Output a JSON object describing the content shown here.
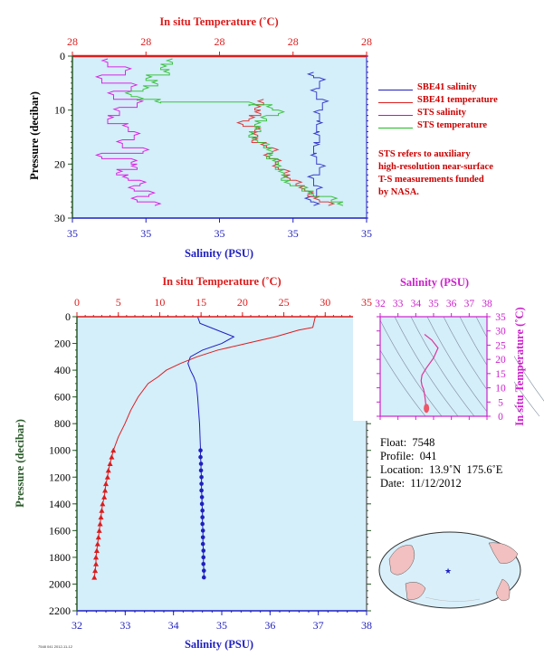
{
  "chart_data": [
    {
      "id": "top",
      "type": "line",
      "title": "In situ Temperature (˚C)",
      "xlabel": "Salinity (PSU)",
      "ylabel": "Pressure (decibar)",
      "ylim": [
        30,
        0
      ],
      "yticks": [
        "0",
        "10",
        "20",
        "30"
      ],
      "xticks_bottom": [
        "35",
        "35",
        "35",
        "35",
        "35"
      ],
      "xticks_top": [
        "28",
        "28",
        "28",
        "28",
        "28"
      ],
      "series": [
        {
          "name": "SBE41 salinity",
          "color": "#1f1fbf",
          "pressure": [
            3,
            4,
            6,
            8,
            10,
            12,
            14,
            16,
            18,
            20,
            22,
            24,
            26,
            27
          ],
          "value": [
            0.82,
            0.84,
            0.83,
            0.85,
            0.84,
            0.83,
            0.84,
            0.82,
            0.83,
            0.84,
            0.82,
            0.83,
            0.81,
            0.82
          ]
        },
        {
          "name": "SBE41 temperature",
          "color": "#dd1c1c",
          "pressure": [
            8,
            9,
            10,
            11,
            12,
            13,
            14,
            15,
            16,
            17,
            18,
            19,
            20,
            21,
            22,
            23,
            24,
            25,
            26,
            27
          ],
          "value": [
            0.65,
            0.62,
            0.64,
            0.6,
            0.58,
            0.62,
            0.63,
            0.61,
            0.66,
            0.68,
            0.67,
            0.69,
            0.7,
            0.72,
            0.74,
            0.76,
            0.79,
            0.8,
            0.84,
            0.87
          ]
        },
        {
          "name": "STS salinity",
          "color": "#dd00dd",
          "pressure": [
            0.5,
            2,
            3.5,
            5,
            6.5,
            8,
            9.5,
            11,
            12.5,
            14,
            15.5,
            17,
            18,
            19,
            20,
            21,
            22,
            23,
            24,
            25,
            26,
            27
          ],
          "value": [
            0.12,
            0.18,
            0.1,
            0.2,
            0.14,
            0.22,
            0.16,
            0.12,
            0.19,
            0.21,
            0.17,
            0.24,
            0.1,
            0.2,
            0.22,
            0.15,
            0.19,
            0.23,
            0.21,
            0.26,
            0.22,
            0.28
          ]
        },
        {
          "name": "STS temperature",
          "color": "#22bb22",
          "pressure": [
            0.5,
            1.5,
            2.5,
            3.5,
            4.5,
            5.5,
            6.5,
            7.5,
            8,
            8.5,
            9,
            10,
            11,
            12,
            13,
            14,
            15,
            16,
            17,
            18,
            19,
            20,
            21,
            22,
            23,
            24,
            25,
            26,
            27
          ],
          "value": [
            0.34,
            0.3,
            0.33,
            0.25,
            0.29,
            0.24,
            0.2,
            0.22,
            0.3,
            0.6,
            0.68,
            0.7,
            0.66,
            0.62,
            0.64,
            0.6,
            0.63,
            0.65,
            0.68,
            0.66,
            0.7,
            0.69,
            0.72,
            0.71,
            0.74,
            0.78,
            0.82,
            0.88,
            0.92
          ]
        }
      ]
    },
    {
      "id": "bottom",
      "type": "line",
      "title": "In situ Temperature (˚C)",
      "xlabel": "Salinity (PSU)",
      "ylabel": "Pressure (decibar)",
      "xlim": [
        32,
        38
      ],
      "xticks": [
        "32",
        "33",
        "34",
        "35",
        "36",
        "37",
        "38"
      ],
      "temp_lim": [
        0,
        35
      ],
      "temp_ticks": [
        "0",
        "5",
        "10",
        "15",
        "20",
        "25",
        "30",
        "35"
      ],
      "ylim": [
        2200,
        0
      ],
      "yticks": [
        "0",
        "200",
        "400",
        "600",
        "800",
        "1000",
        "1200",
        "1400",
        "1600",
        "1800",
        "2000",
        "2200"
      ],
      "series": [
        {
          "name": "Salinity",
          "color": "#1f1fbf",
          "pressure": [
            0,
            50,
            100,
            150,
            200,
            250,
            300,
            350,
            400,
            450,
            500,
            600,
            700,
            800,
            900,
            1000,
            1050,
            1100,
            1150,
            1200,
            1250,
            1300,
            1350,
            1400,
            1450,
            1500,
            1550,
            1600,
            1650,
            1700,
            1750,
            1800,
            1850,
            1900,
            1950
          ],
          "value": [
            34.5,
            34.55,
            34.9,
            35.25,
            35.0,
            34.6,
            34.35,
            34.3,
            34.35,
            34.42,
            34.47,
            34.5,
            34.52,
            34.54,
            34.55,
            34.56,
            34.56,
            34.57,
            34.57,
            34.58,
            34.58,
            34.58,
            34.59,
            34.59,
            34.6,
            34.6,
            34.6,
            34.61,
            34.61,
            34.61,
            34.62,
            34.62,
            34.62,
            34.63,
            34.63
          ],
          "markers_from": 1000
        },
        {
          "name": "Temperature",
          "color": "#dd1c1c",
          "pressure": [
            0,
            80,
            100,
            150,
            200,
            250,
            300,
            350,
            400,
            450,
            500,
            600,
            700,
            800,
            900,
            1000,
            1050,
            1100,
            1150,
            1200,
            1250,
            1300,
            1350,
            1400,
            1450,
            1500,
            1550,
            1600,
            1650,
            1700,
            1750,
            1800,
            1850,
            1900,
            1950
          ],
          "value": [
            28.8,
            28.5,
            26.8,
            24.0,
            20.5,
            17.0,
            14.5,
            12.5,
            10.8,
            9.8,
            8.6,
            7.4,
            6.5,
            5.8,
            5.0,
            4.4,
            4.2,
            4.0,
            3.8,
            3.7,
            3.5,
            3.4,
            3.3,
            3.1,
            3.0,
            2.9,
            2.8,
            2.7,
            2.6,
            2.5,
            2.4,
            2.3,
            2.3,
            2.2,
            2.1
          ],
          "markers_from": 1000
        }
      ]
    },
    {
      "id": "ts",
      "type": "line",
      "title": "Salinity (PSU)",
      "ylabel": "In situ Temperature (˚C)",
      "xlim": [
        32,
        38
      ],
      "xticks": [
        "32",
        "33",
        "34",
        "35",
        "36",
        "37",
        "38"
      ],
      "ylim": [
        0,
        35
      ],
      "yticks": [
        "0",
        "5",
        "10",
        "15",
        "20",
        "25",
        "30",
        "35"
      ],
      "series": [
        {
          "name": "T-S",
          "color": "#dd3399",
          "salinity": [
            34.63,
            34.6,
            34.57,
            34.55,
            34.52,
            34.5,
            34.47,
            34.42,
            34.35,
            34.3,
            34.35,
            34.6,
            35.0,
            35.25,
            34.9,
            34.55,
            34.5
          ],
          "temperature": [
            2.1,
            2.9,
            3.7,
            5.0,
            6.5,
            7.4,
            8.6,
            9.8,
            10.8,
            12.5,
            14.5,
            17.0,
            20.5,
            24.0,
            26.8,
            28.5,
            28.8
          ]
        }
      ]
    }
  ],
  "legend": [
    {
      "label": "SBE41 salinity",
      "color": "#1f1fbf"
    },
    {
      "label": "SBE41 temperature",
      "color": "#dd1c1c"
    },
    {
      "label": "STS salinity",
      "color": "#dd00dd"
    },
    {
      "label": "STS temperature",
      "color": "#22bb22"
    }
  ],
  "note": [
    "STS refers to auxiliary",
    "high-resolution near-surface",
    "T-S measurements funded",
    "by NASA."
  ],
  "info": {
    "float": "Float:  7548",
    "profile": "Profile:  041",
    "location": "Location:  13.9˚N  175.6˚E",
    "date": "Date:  11/12/2012"
  },
  "footer_text": "7548 041 2012-11-12",
  "colors": {
    "plot_bg": "#d4eefa",
    "axis_red": "#dd1c1c",
    "axis_blue": "#1f1fbf",
    "axis_green": "#2a5a2a",
    "axis_magenta": "#cc22cc"
  }
}
